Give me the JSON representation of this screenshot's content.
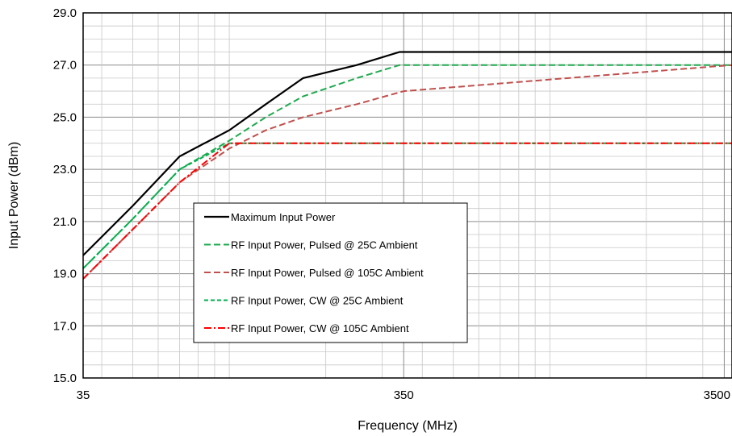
{
  "chart_data": {
    "type": "line",
    "title": "",
    "xlabel": "Frequency (MHz)",
    "ylabel": "Input Power (dBm)",
    "x_scale": "log",
    "xlim": [
      35,
      3700
    ],
    "ylim": [
      15,
      29
    ],
    "x_ticks": [
      {
        "value": 35,
        "label": "35"
      },
      {
        "value": 350,
        "label": "350"
      },
      {
        "value": 3500,
        "label": "3500"
      }
    ],
    "y_ticks": [
      {
        "value": 15,
        "label": "15.0"
      },
      {
        "value": 17,
        "label": "17.0"
      },
      {
        "value": 19,
        "label": "19.0"
      },
      {
        "value": 21,
        "label": "21.0"
      },
      {
        "value": 23,
        "label": "23.0"
      },
      {
        "value": 25,
        "label": "25.0"
      },
      {
        "value": 27,
        "label": "27.0"
      },
      {
        "value": 29,
        "label": "29.0"
      }
    ],
    "grid": true,
    "legend_position": "center-left",
    "series": [
      {
        "name": "Maximum Input Power",
        "color": "#000000",
        "dash": "solid",
        "x": [
          35,
          50,
          70,
          100,
          130,
          170,
          250,
          340,
          3700
        ],
        "y": [
          19.7,
          21.6,
          23.5,
          24.5,
          25.5,
          26.5,
          27.0,
          27.5,
          27.5
        ]
      },
      {
        "name": "RF Input Power, Pulsed @ 25C Ambient",
        "color": "#1faa4f",
        "dash": "dash",
        "x": [
          35,
          50,
          70,
          100,
          130,
          170,
          250,
          340,
          3700
        ],
        "y": [
          19.2,
          21.1,
          23.0,
          24.1,
          25.0,
          25.8,
          26.5,
          27.0,
          27.0
        ]
      },
      {
        "name": "RF Input Power, Pulsed  @ 105C Ambient",
        "color": "#c0504d",
        "dash": "dash",
        "x": [
          35,
          50,
          70,
          100,
          130,
          170,
          250,
          350,
          3700
        ],
        "y": [
          18.8,
          20.7,
          22.5,
          23.8,
          24.5,
          25.0,
          25.5,
          26.0,
          27.0
        ]
      },
      {
        "name": "RF Input Power, CW @ 25C Ambient",
        "color": "#00b050",
        "dash": "short-dash",
        "x": [
          35,
          50,
          70,
          100,
          3700
        ],
        "y": [
          19.2,
          21.1,
          23.0,
          24.0,
          24.0
        ]
      },
      {
        "name": "RF Input Power, CW @ 105C Ambient",
        "color": "#ff0000",
        "dash": "dash-dot",
        "x": [
          35,
          50,
          70,
          100,
          3700
        ],
        "y": [
          18.8,
          20.7,
          22.5,
          24.0,
          24.0
        ]
      }
    ]
  }
}
